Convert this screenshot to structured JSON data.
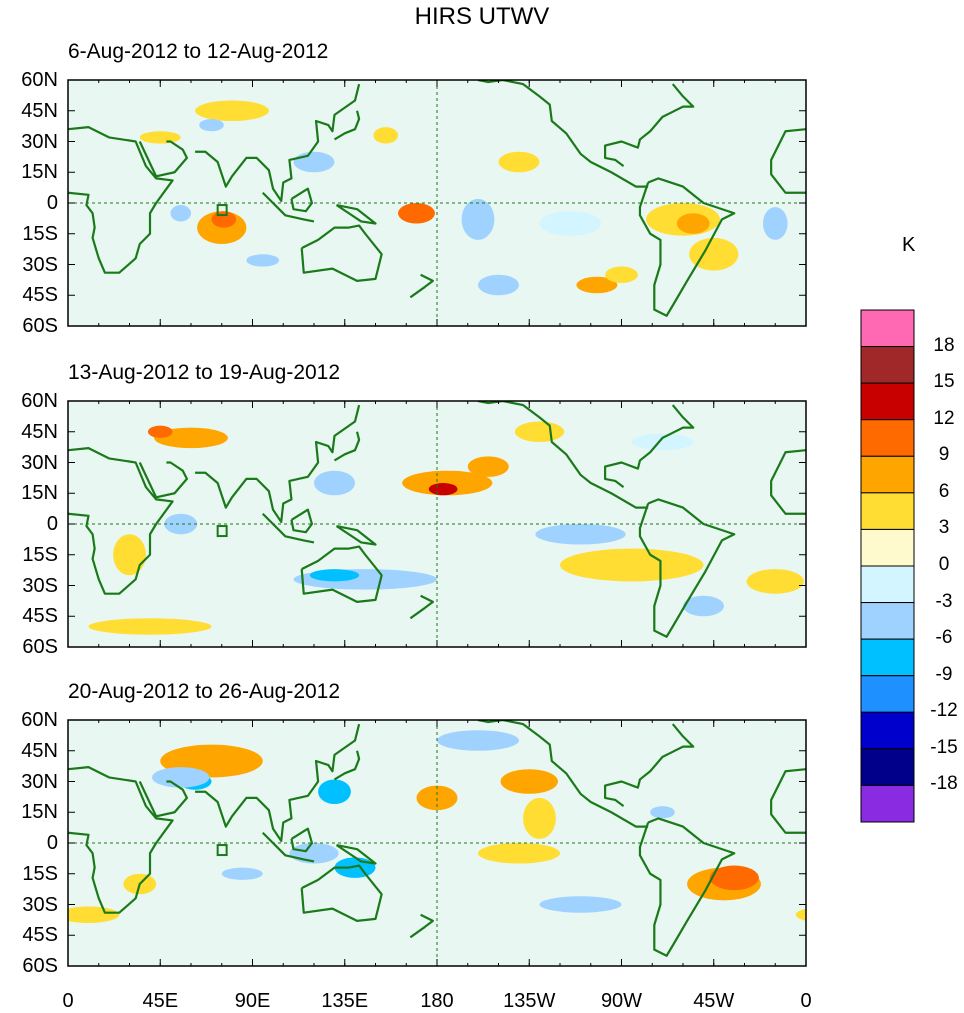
{
  "title": "HIRS UTWV",
  "unit": "K",
  "panels": [
    {
      "label": "6-Aug-2012 to 12-Aug-2012",
      "anomalies": [
        [
          75,
          -12,
          12,
          8,
          6
        ],
        [
          76,
          -8,
          6,
          4,
          9
        ],
        [
          170,
          -5,
          9,
          5,
          9
        ],
        [
          200,
          -8,
          8,
          10,
          -4
        ],
        [
          245,
          -10,
          15,
          6,
          -3
        ],
        [
          300,
          -8,
          18,
          8,
          4
        ],
        [
          305,
          -10,
          8,
          5,
          7
        ],
        [
          315,
          -25,
          12,
          8,
          4
        ],
        [
          258,
          -40,
          10,
          4,
          6
        ],
        [
          270,
          -35,
          8,
          4,
          4
        ],
        [
          55,
          -5,
          5,
          4,
          -6
        ],
        [
          95,
          -28,
          8,
          3,
          -5
        ],
        [
          80,
          45,
          18,
          5,
          4
        ],
        [
          70,
          38,
          6,
          3,
          -6
        ],
        [
          45,
          32,
          10,
          3,
          5
        ],
        [
          220,
          20,
          10,
          5,
          5
        ],
        [
          155,
          33,
          6,
          4,
          5
        ],
        [
          120,
          20,
          10,
          5,
          -4
        ],
        [
          345,
          -10,
          6,
          8,
          -5
        ],
        [
          210,
          -40,
          10,
          5,
          -4
        ]
      ]
    },
    {
      "label": "13-Aug-2012 to 19-Aug-2012",
      "anomalies": [
        [
          185,
          20,
          22,
          6,
          6
        ],
        [
          183,
          17,
          7,
          3,
          13
        ],
        [
          205,
          28,
          10,
          5,
          7
        ],
        [
          60,
          42,
          18,
          5,
          6
        ],
        [
          45,
          45,
          6,
          3,
          9
        ],
        [
          145,
          -27,
          35,
          5,
          -6
        ],
        [
          130,
          -25,
          12,
          3,
          -9
        ],
        [
          275,
          -20,
          35,
          8,
          4
        ],
        [
          250,
          -5,
          22,
          5,
          -4
        ],
        [
          345,
          -28,
          14,
          6,
          5
        ],
        [
          310,
          -40,
          10,
          5,
          -4
        ],
        [
          130,
          20,
          10,
          6,
          -4
        ],
        [
          55,
          0,
          8,
          5,
          -4
        ],
        [
          30,
          -15,
          8,
          10,
          4
        ],
        [
          230,
          45,
          12,
          5,
          4
        ],
        [
          290,
          40,
          15,
          4,
          -3
        ],
        [
          40,
          -50,
          30,
          4,
          4
        ]
      ]
    },
    {
      "label": "20-Aug-2012 to 26-Aug-2012",
      "anomalies": [
        [
          70,
          40,
          25,
          8,
          6
        ],
        [
          62,
          30,
          8,
          4,
          -9
        ],
        [
          55,
          32,
          14,
          5,
          -5
        ],
        [
          130,
          25,
          8,
          6,
          -8
        ],
        [
          180,
          22,
          10,
          6,
          6
        ],
        [
          225,
          30,
          14,
          6,
          6
        ],
        [
          230,
          12,
          8,
          10,
          4
        ],
        [
          220,
          -5,
          20,
          5,
          4
        ],
        [
          320,
          -20,
          18,
          8,
          6
        ],
        [
          325,
          -17,
          12,
          6,
          9
        ],
        [
          140,
          -12,
          10,
          5,
          -8
        ],
        [
          120,
          -5,
          12,
          5,
          -5
        ],
        [
          85,
          -15,
          10,
          3,
          -5
        ],
        [
          250,
          -30,
          20,
          4,
          -4
        ],
        [
          35,
          -20,
          8,
          5,
          5
        ],
        [
          290,
          15,
          6,
          3,
          -6
        ],
        [
          200,
          50,
          20,
          5,
          -4
        ],
        [
          10,
          -35,
          15,
          4,
          5
        ]
      ]
    }
  ],
  "lat_labels": [
    "60N",
    "45N",
    "30N",
    "15N",
    "0",
    "15S",
    "30S",
    "45S",
    "60S"
  ],
  "lon_labels": [
    "0",
    "45E",
    "90E",
    "135E",
    "180",
    "135W",
    "90W",
    "45W",
    "0"
  ],
  "colorbar": {
    "labels": [
      "18",
      "15",
      "12",
      "9",
      "6",
      "3",
      "0",
      "-3",
      "-6",
      "-9",
      "-12",
      "-15",
      "-18"
    ],
    "colors": [
      "#ff69b4",
      "#a02828",
      "#c80000",
      "#ff6a00",
      "#ffa500",
      "#ffdd33",
      "#fffacd",
      "#d2f5ff",
      "#a0d2ff",
      "#00c0ff",
      "#1e90ff",
      "#0000cd",
      "#00008b",
      "#8a2be2"
    ]
  },
  "coast_color": "#1a7a1a"
}
